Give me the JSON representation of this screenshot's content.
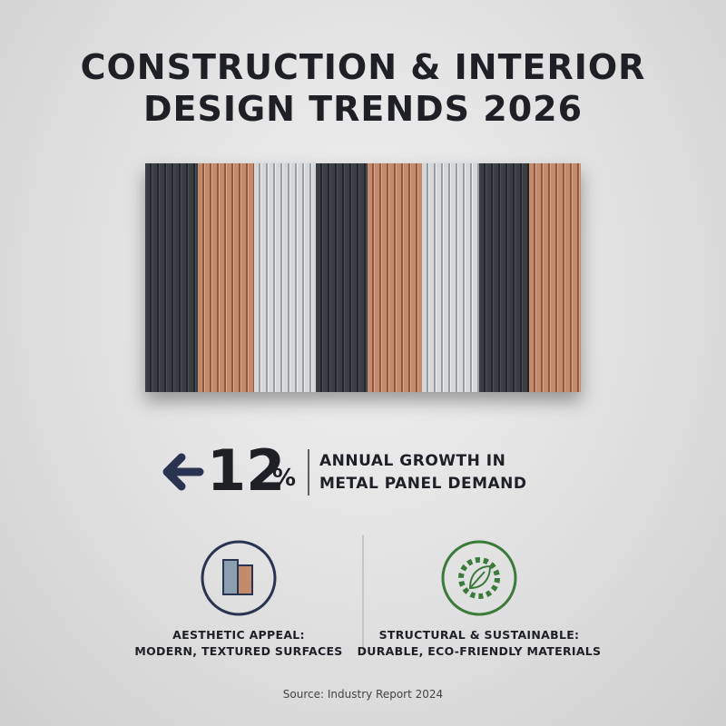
{
  "header": {
    "title_lines": [
      "CONSTRUCTION & INTERIOR",
      "DESIGN TRENDS 2026"
    ]
  },
  "stat": {
    "value": 12,
    "unit": "%",
    "caption_lines": [
      "ANNUAL GROWTH IN",
      "METAL PANEL DEMAND"
    ]
  },
  "features": [
    {
      "lines": [
        "AESTHETIC APPEAL:",
        "MODERN, TEXTURED SURFACES"
      ]
    },
    {
      "lines": [
        "STRUCTURAL & SUSTAINABLE:",
        "DURABLE, ECO-FRIENDLY MATERIALS"
      ]
    }
  ],
  "source": "Source: Industry Report 2024"
}
